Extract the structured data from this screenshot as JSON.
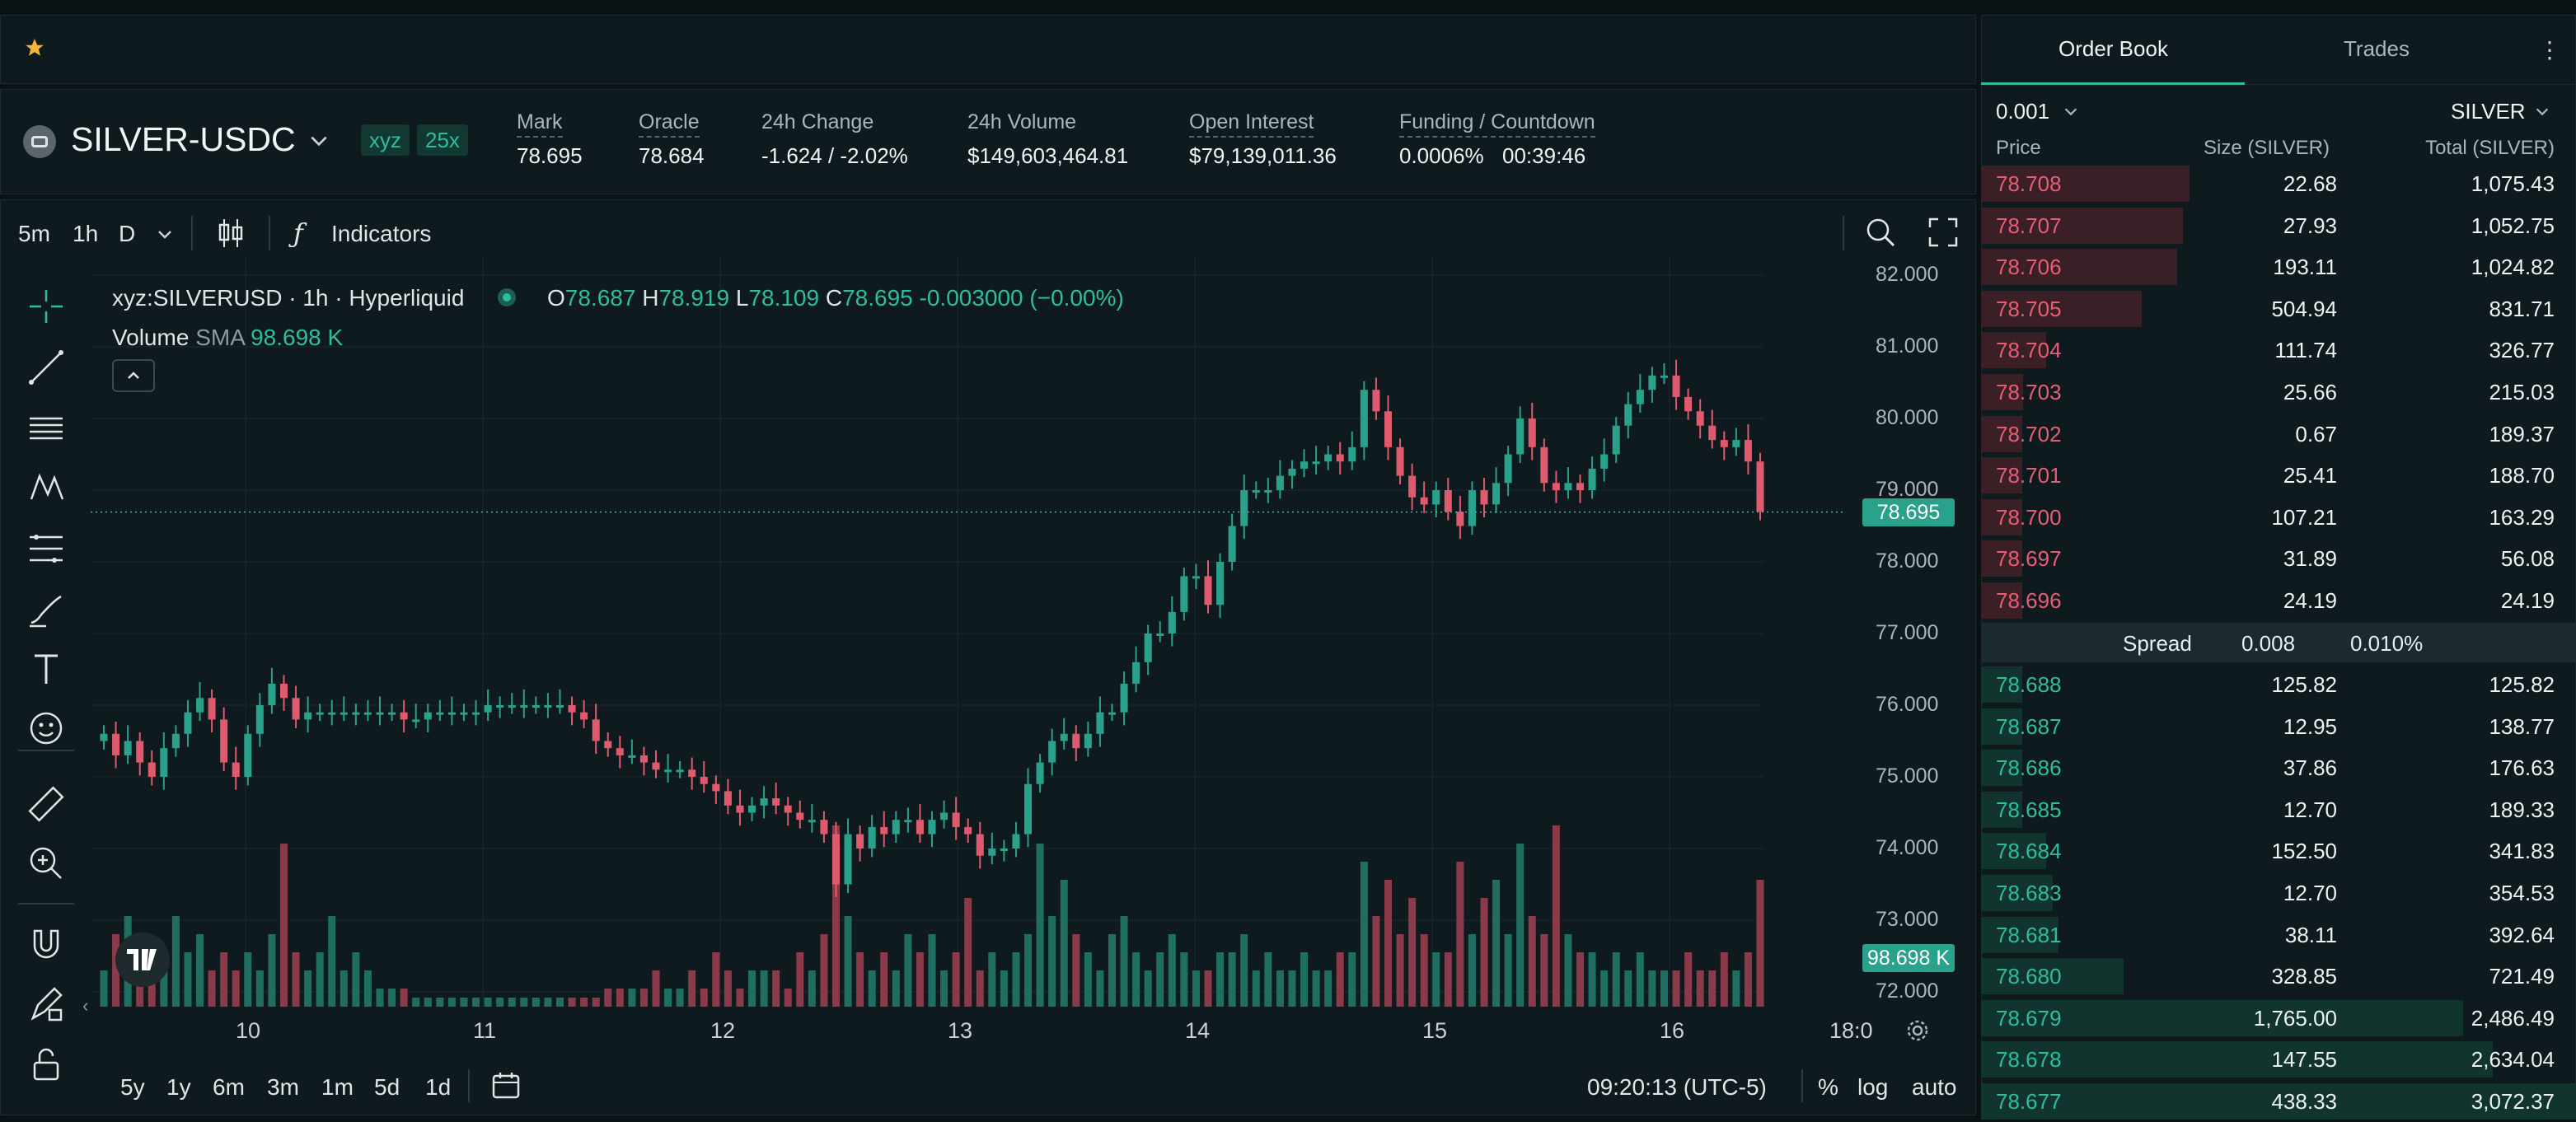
{
  "header": {
    "pair": "SILVER-USDC",
    "chips": [
      "xyz",
      "25x"
    ],
    "stats": [
      {
        "label": "Mark",
        "value": "78.695",
        "value_color": "green"
      },
      {
        "label": "Oracle",
        "value": "78.684",
        "value_color": "white"
      },
      {
        "label": "24h Change",
        "value": "-1.624 / -2.02%",
        "value_color": "red"
      },
      {
        "label": "24h Volume",
        "value": "$149,603,464.81",
        "value_color": "white"
      },
      {
        "label": "Open Interest",
        "value": "$79,139,011.36",
        "value_color": "white"
      },
      {
        "label": "Funding / Countdown",
        "value": "0.0006%",
        "value2": "00:39:46",
        "value_color": "green"
      }
    ]
  },
  "chart_toolbar": {
    "timeframes": [
      "5m",
      "1h",
      "D"
    ],
    "active_timeframe": "1h",
    "indicators_label": "Indicators"
  },
  "drawing_tools": [
    "crosshair-icon",
    "trendline-icon",
    "horizontal-lines-icon",
    "pattern-icon",
    "fib-icon",
    "brush-icon",
    "text-icon",
    "emoji-icon",
    "ruler-icon",
    "zoom-in-icon",
    "magnet-icon",
    "lock-draw-icon",
    "unlock-icon"
  ],
  "legend": {
    "symbol": "xyz:SILVERUSD · 1h · Hyperliquid",
    "o_label": "O",
    "o": "78.687",
    "h_label": "H",
    "h": "78.919",
    "l_label": "L",
    "l": "78.109",
    "c_label": "C",
    "c": "78.695",
    "change": "-0.003000 (−0.00%)",
    "volume_label": "Volume",
    "sma_label": "SMA",
    "sma_value": "98.698 K"
  },
  "chart_data": {
    "type": "candlestick",
    "y_ticks": [
      "82.000",
      "81.000",
      "80.000",
      "79.000",
      "78.000",
      "77.000",
      "76.000",
      "75.000",
      "74.000",
      "73.000",
      "72.000"
    ],
    "ylim": [
      71.9,
      82.0
    ],
    "x_ticks": [
      "10",
      "11",
      "12",
      "13",
      "14",
      "15",
      "16",
      "18:0"
    ],
    "last_price": "78.695",
    "volume_tag": "98.698 K",
    "close_series": [
      75.6,
      75.3,
      75.5,
      75.2,
      75.0,
      75.4,
      75.6,
      75.9,
      76.1,
      75.8,
      75.2,
      75.0,
      75.6,
      76.0,
      76.3,
      76.1,
      75.8,
      75.9,
      75.9,
      75.9,
      75.9,
      75.9,
      75.9,
      75.9,
      75.9,
      75.8,
      75.8,
      75.9,
      75.9,
      75.9,
      75.9,
      75.9,
      76.0,
      76.0,
      76.0,
      76.0,
      76.0,
      76.0,
      76.0,
      75.9,
      75.8,
      75.5,
      75.4,
      75.3,
      75.3,
      75.2,
      75.1,
      75.1,
      75.1,
      75.0,
      74.9,
      74.8,
      74.6,
      74.5,
      74.6,
      74.7,
      74.6,
      74.5,
      74.4,
      74.4,
      74.2,
      73.5,
      74.2,
      74.0,
      74.3,
      74.2,
      74.4,
      74.4,
      74.2,
      74.4,
      74.5,
      74.3,
      74.2,
      73.9,
      74.0,
      74.0,
      74.2,
      74.9,
      75.2,
      75.5,
      75.6,
      75.4,
      75.6,
      75.9,
      75.9,
      76.3,
      76.6,
      77.0,
      77.0,
      77.3,
      77.8,
      77.8,
      77.4,
      78.0,
      78.5,
      79.0,
      79.0,
      79.0,
      79.2,
      79.3,
      79.4,
      79.4,
      79.5,
      79.4,
      79.6,
      80.4,
      80.1,
      79.6,
      79.2,
      78.9,
      78.8,
      79.0,
      78.7,
      78.5,
      79.0,
      78.8,
      79.1,
      79.5,
      80.0,
      79.6,
      79.1,
      79.0,
      79.1,
      79.0,
      79.3,
      79.5,
      79.9,
      80.2,
      80.4,
      80.6,
      80.6,
      80.3,
      80.1,
      79.9,
      79.7,
      79.6,
      79.7,
      79.4,
      78.7
    ],
    "volume_series": [
      0.2,
      0.4,
      0.5,
      0.3,
      0.3,
      0.2,
      0.5,
      0.3,
      0.4,
      0.2,
      0.3,
      0.2,
      0.3,
      0.2,
      0.4,
      0.9,
      0.3,
      0.2,
      0.3,
      0.5,
      0.2,
      0.3,
      0.2,
      0.1,
      0.1,
      0.1,
      0.05,
      0.05,
      0.05,
      0.05,
      0.05,
      0.05,
      0.05,
      0.05,
      0.05,
      0.05,
      0.05,
      0.05,
      0.05,
      0.05,
      0.05,
      0.05,
      0.1,
      0.1,
      0.1,
      0.1,
      0.2,
      0.1,
      0.1,
      0.2,
      0.1,
      0.3,
      0.2,
      0.1,
      0.2,
      0.2,
      0.2,
      0.1,
      0.3,
      0.2,
      0.4,
      1.0,
      0.5,
      0.3,
      0.2,
      0.3,
      0.2,
      0.4,
      0.3,
      0.4,
      0.2,
      0.3,
      0.6,
      0.2,
      0.3,
      0.2,
      0.3,
      0.4,
      0.9,
      0.5,
      0.7,
      0.4,
      0.3,
      0.2,
      0.4,
      0.5,
      0.3,
      0.2,
      0.3,
      0.4,
      0.3,
      0.2,
      0.2,
      0.3,
      0.3,
      0.4,
      0.2,
      0.3,
      0.2,
      0.2,
      0.3,
      0.2,
      0.2,
      0.3,
      0.3,
      0.8,
      0.5,
      0.7,
      0.4,
      0.6,
      0.4,
      0.3,
      0.3,
      0.8,
      0.4,
      0.6,
      0.7,
      0.4,
      0.9,
      0.5,
      0.4,
      1.0,
      0.4,
      0.3,
      0.3,
      0.2,
      0.3,
      0.2,
      0.3,
      0.2,
      0.2,
      0.2,
      0.3,
      0.2,
      0.2,
      0.3,
      0.2,
      0.3,
      0.7,
      0.3
    ]
  },
  "bottom_bar": {
    "ranges": [
      "5y",
      "1y",
      "6m",
      "3m",
      "1m",
      "5d",
      "1d"
    ],
    "time": "09:20:13 (UTC-5)",
    "percent": "%",
    "log": "log",
    "auto": "auto"
  },
  "order_book": {
    "tabs": [
      "Order Book",
      "Trades"
    ],
    "active_tab": "Order Book",
    "tick_size": "0.001",
    "unit": "SILVER",
    "headers": [
      "Price",
      "Size (SILVER)",
      "Total (SILVER)"
    ],
    "asks": [
      {
        "price": "78.708",
        "size": "22.68",
        "total": "1,075.43",
        "depth": 0.35
      },
      {
        "price": "78.707",
        "size": "27.93",
        "total": "1,052.75",
        "depth": 0.34
      },
      {
        "price": "78.706",
        "size": "193.11",
        "total": "1,024.82",
        "depth": 0.33
      },
      {
        "price": "78.705",
        "size": "504.94",
        "total": "831.71",
        "depth": 0.27
      },
      {
        "price": "78.704",
        "size": "111.74",
        "total": "326.77",
        "depth": 0.11
      },
      {
        "price": "78.703",
        "size": "25.66",
        "total": "215.03",
        "depth": 0.07
      },
      {
        "price": "78.702",
        "size": "0.67",
        "total": "189.37",
        "depth": 0.06
      },
      {
        "price": "78.701",
        "size": "25.41",
        "total": "188.70",
        "depth": 0.06
      },
      {
        "price": "78.700",
        "size": "107.21",
        "total": "163.29",
        "depth": 0.05
      },
      {
        "price": "78.697",
        "size": "31.89",
        "total": "56.08",
        "depth": 0.02
      },
      {
        "price": "78.696",
        "size": "24.19",
        "total": "24.19",
        "depth": 0.01
      }
    ],
    "spread": {
      "label": "Spread",
      "value": "0.008",
      "pct": "0.010%"
    },
    "bids": [
      {
        "price": "78.688",
        "size": "125.82",
        "total": "125.82",
        "depth": 0.04
      },
      {
        "price": "78.687",
        "size": "12.95",
        "total": "138.77",
        "depth": 0.05
      },
      {
        "price": "78.686",
        "size": "37.86",
        "total": "176.63",
        "depth": 0.06
      },
      {
        "price": "78.685",
        "size": "12.70",
        "total": "189.33",
        "depth": 0.06
      },
      {
        "price": "78.684",
        "size": "152.50",
        "total": "341.83",
        "depth": 0.11
      },
      {
        "price": "78.683",
        "size": "12.70",
        "total": "354.53",
        "depth": 0.12
      },
      {
        "price": "78.681",
        "size": "38.11",
        "total": "392.64",
        "depth": 0.13
      },
      {
        "price": "78.680",
        "size": "328.85",
        "total": "721.49",
        "depth": 0.24
      },
      {
        "price": "78.679",
        "size": "1,765.00",
        "total": "2,486.49",
        "depth": 0.81
      },
      {
        "price": "78.678",
        "size": "147.55",
        "total": "2,634.04",
        "depth": 0.86
      },
      {
        "price": "78.677",
        "size": "438.33",
        "total": "3,072.37",
        "depth": 1.0
      }
    ]
  }
}
